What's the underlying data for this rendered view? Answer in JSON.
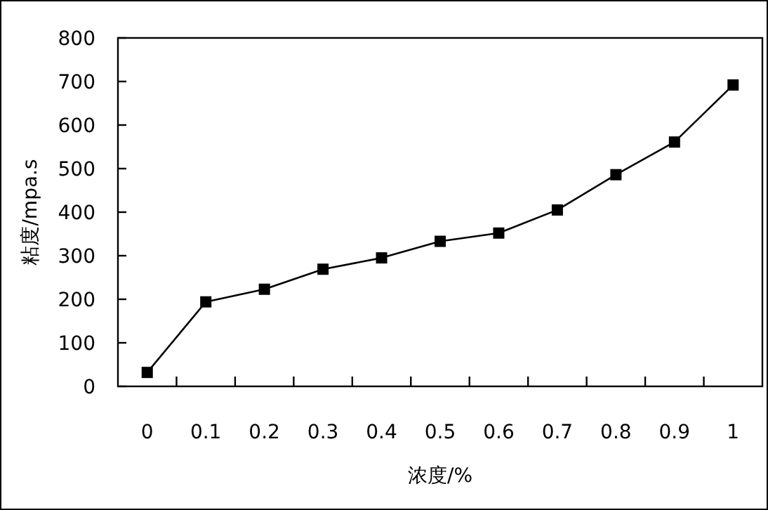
{
  "chart_data": {
    "type": "line",
    "xlabel": "浓度/%",
    "ylabel": "粘度/mpa.s",
    "categories": [
      "0",
      "0.1",
      "0.2",
      "0.3",
      "0.4",
      "0.5",
      "0.6",
      "0.7",
      "0.8",
      "0.9",
      "1"
    ],
    "values": [
      32,
      194,
      223,
      269,
      295,
      333,
      352,
      405,
      486,
      561,
      692
    ],
    "color": "#000000",
    "marker": "square",
    "line_style": "solid",
    "ylim": [
      0,
      800
    ],
    "yticks": [
      0,
      100,
      200,
      300,
      400,
      500,
      600,
      700,
      800
    ],
    "grid": false
  }
}
